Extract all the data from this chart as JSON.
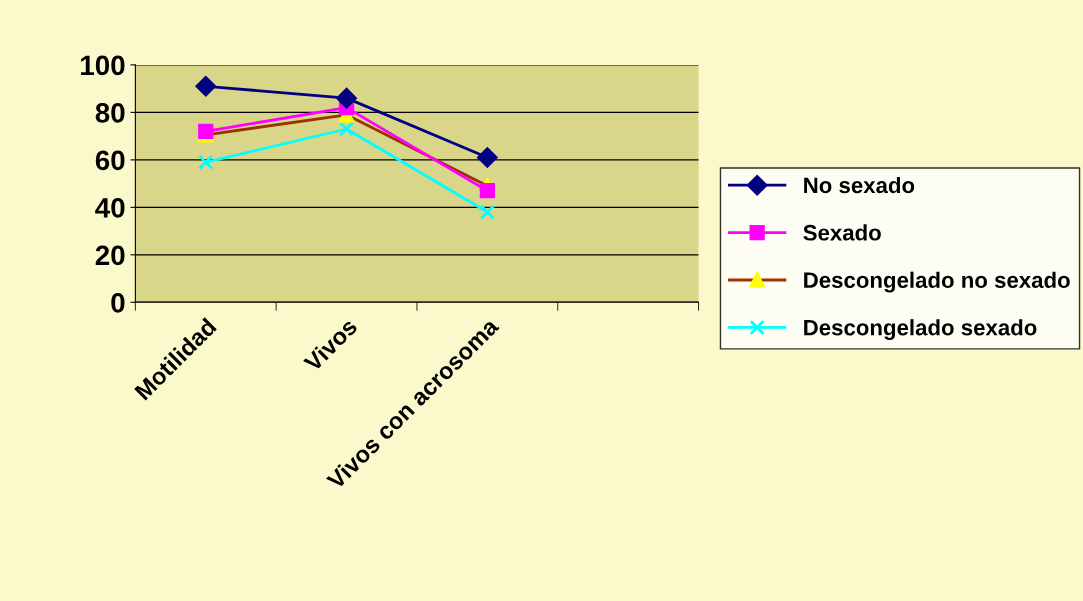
{
  "chart_data": {
    "type": "line",
    "categories": [
      "Motilidad",
      "Vivos",
      "Vivos con acrosoma",
      null
    ],
    "series": [
      {
        "name": "No sexado",
        "color": "#000080",
        "marker": "diamond",
        "values": [
          91,
          86,
          61,
          null
        ]
      },
      {
        "name": "Sexado",
        "color": "#ff00ff",
        "marker": "square",
        "values": [
          72,
          82,
          47,
          null
        ]
      },
      {
        "name": "Descongelado no sexado",
        "color": "#993300",
        "marker": "triangle",
        "values": [
          70.5,
          79,
          49,
          null
        ]
      },
      {
        "name": "Descongelado sexado",
        "color": "#00ffff",
        "marker": "cross",
        "values": [
          59,
          73,
          38,
          null
        ]
      }
    ],
    "ylim": [
      0,
      100
    ],
    "yticks": [
      0,
      20,
      40,
      60,
      80,
      100
    ],
    "grid": "y",
    "legend": "right",
    "line_style": "solid"
  }
}
